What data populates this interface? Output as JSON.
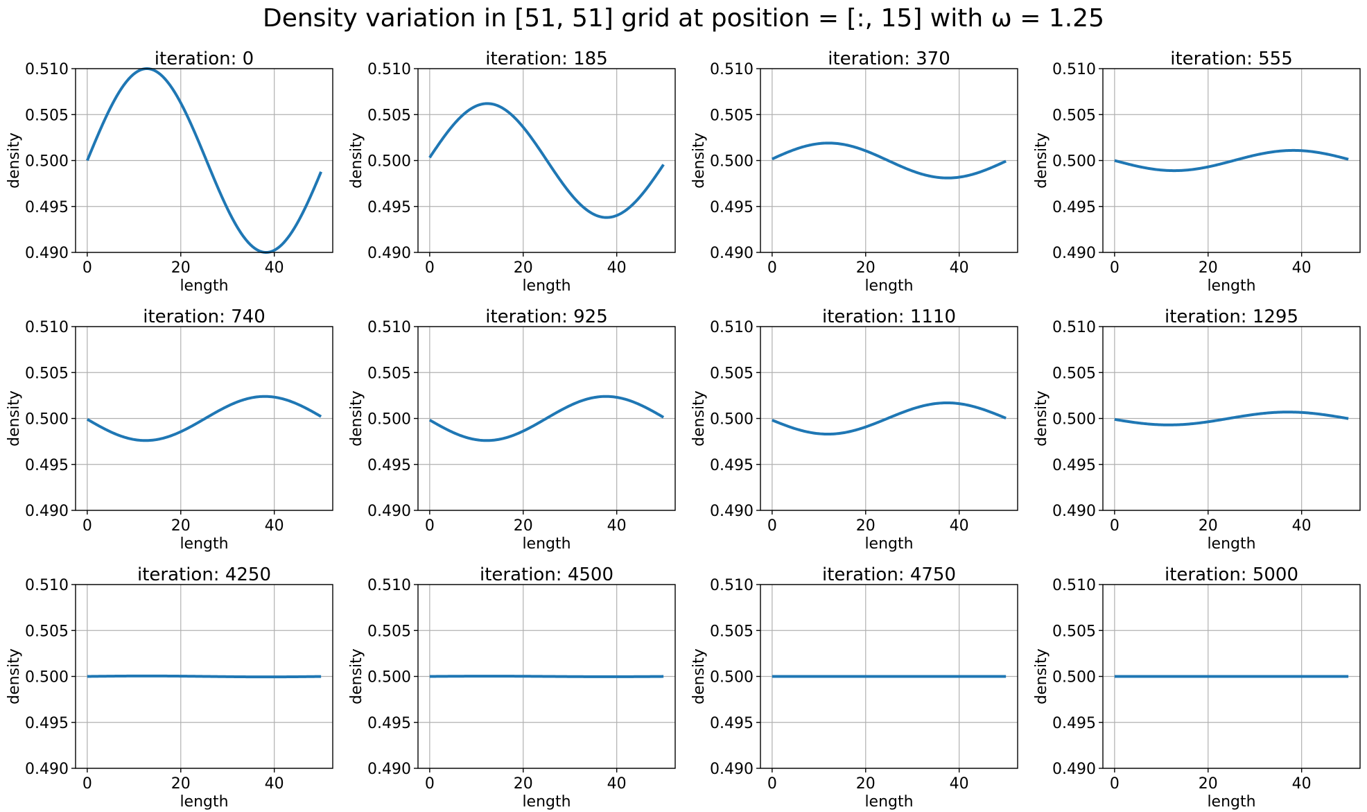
{
  "figure": {
    "title": "Density variation in [51, 51] grid at position = [:, 15] with ω = 1.25"
  },
  "chart_data": [
    {
      "type": "line",
      "title": "iteration: 0",
      "xlabel": "length",
      "ylabel": "density",
      "xlim": [
        -2.5,
        52.5
      ],
      "ylim": [
        0.49,
        0.51
      ],
      "xticks": [
        "0",
        "20",
        "40"
      ],
      "yticks": [
        "0.490",
        "0.495",
        "0.500",
        "0.505",
        "0.510"
      ],
      "grid": true,
      "color": "#1f77b4",
      "series": [
        {
          "x": [
            0,
            50
          ],
          "amplitude": 0.01,
          "phase_deg": 0,
          "wavelength": 51,
          "baseline": 0.5
        }
      ]
    },
    {
      "type": "line",
      "title": "iteration: 185",
      "xlabel": "length",
      "ylabel": "density",
      "xlim": [
        -2.5,
        52.5
      ],
      "ylim": [
        0.49,
        0.51
      ],
      "xticks": [
        "0",
        "20",
        "40"
      ],
      "yticks": [
        "0.490",
        "0.495",
        "0.500",
        "0.505",
        "0.510"
      ],
      "grid": true,
      "color": "#1f77b4",
      "series": [
        {
          "x": [
            0,
            50
          ],
          "amplitude": 0.0062,
          "phase_deg": 3,
          "wavelength": 51,
          "baseline": 0.5
        }
      ]
    },
    {
      "type": "line",
      "title": "iteration: 370",
      "xlabel": "length",
      "ylabel": "density",
      "xlim": [
        -2.5,
        52.5
      ],
      "ylim": [
        0.49,
        0.51
      ],
      "xticks": [
        "0",
        "20",
        "40"
      ],
      "yticks": [
        "0.490",
        "0.495",
        "0.500",
        "0.505",
        "0.510"
      ],
      "grid": true,
      "color": "#1f77b4",
      "series": [
        {
          "x": [
            0,
            50
          ],
          "amplitude": 0.0019,
          "phase_deg": 5,
          "wavelength": 51,
          "baseline": 0.5
        }
      ]
    },
    {
      "type": "line",
      "title": "iteration: 555",
      "xlabel": "length",
      "ylabel": "density",
      "xlim": [
        -2.5,
        52.5
      ],
      "ylim": [
        0.49,
        0.51
      ],
      "xticks": [
        "0",
        "20",
        "40"
      ],
      "yticks": [
        "0.490",
        "0.495",
        "0.500",
        "0.505",
        "0.510"
      ],
      "grid": true,
      "color": "#1f77b4",
      "series": [
        {
          "x": [
            0,
            50
          ],
          "amplitude": 0.0011,
          "phase_deg": 180,
          "wavelength": 51,
          "baseline": 0.5
        }
      ]
    },
    {
      "type": "line",
      "title": "iteration: 740",
      "xlabel": "length",
      "ylabel": "density",
      "xlim": [
        -2.5,
        52.5
      ],
      "ylim": [
        0.49,
        0.51
      ],
      "xticks": [
        "0",
        "20",
        "40"
      ],
      "yticks": [
        "0.490",
        "0.495",
        "0.500",
        "0.505",
        "0.510"
      ],
      "grid": true,
      "color": "#1f77b4",
      "series": [
        {
          "x": [
            0,
            50
          ],
          "amplitude": 0.0024,
          "phase_deg": 182,
          "wavelength": 51,
          "baseline": 0.5
        }
      ]
    },
    {
      "type": "line",
      "title": "iteration: 925",
      "xlabel": "length",
      "ylabel": "density",
      "xlim": [
        -2.5,
        52.5
      ],
      "ylim": [
        0.49,
        0.51
      ],
      "xticks": [
        "0",
        "20",
        "40"
      ],
      "yticks": [
        "0.490",
        "0.495",
        "0.500",
        "0.505",
        "0.510"
      ],
      "grid": true,
      "color": "#1f77b4",
      "series": [
        {
          "x": [
            0,
            50
          ],
          "amplitude": 0.0024,
          "phase_deg": 184,
          "wavelength": 51,
          "baseline": 0.5
        }
      ]
    },
    {
      "type": "line",
      "title": "iteration: 1110",
      "xlabel": "length",
      "ylabel": "density",
      "xlim": [
        -2.5,
        52.5
      ],
      "ylim": [
        0.49,
        0.51
      ],
      "xticks": [
        "0",
        "20",
        "40"
      ],
      "yticks": [
        "0.490",
        "0.495",
        "0.500",
        "0.505",
        "0.510"
      ],
      "grid": true,
      "color": "#1f77b4",
      "series": [
        {
          "x": [
            0,
            50
          ],
          "amplitude": 0.0017,
          "phase_deg": 186,
          "wavelength": 51,
          "baseline": 0.5
        }
      ]
    },
    {
      "type": "line",
      "title": "iteration: 1295",
      "xlabel": "length",
      "ylabel": "density",
      "xlim": [
        -2.5,
        52.5
      ],
      "ylim": [
        0.49,
        0.51
      ],
      "xticks": [
        "0",
        "20",
        "40"
      ],
      "yticks": [
        "0.490",
        "0.495",
        "0.500",
        "0.505",
        "0.510"
      ],
      "grid": true,
      "color": "#1f77b4",
      "series": [
        {
          "x": [
            0,
            50
          ],
          "amplitude": 0.0007,
          "phase_deg": 188,
          "wavelength": 51,
          "baseline": 0.5
        }
      ]
    },
    {
      "type": "line",
      "title": "iteration: 4250",
      "xlabel": "length",
      "ylabel": "density",
      "xlim": [
        -2.5,
        52.5
      ],
      "ylim": [
        0.49,
        0.51
      ],
      "xticks": [
        "0",
        "20",
        "40"
      ],
      "yticks": [
        "0.490",
        "0.495",
        "0.500",
        "0.505",
        "0.510"
      ],
      "grid": true,
      "color": "#1f77b4",
      "series": [
        {
          "x": [
            0,
            50
          ],
          "amplitude": 5e-05,
          "phase_deg": 0,
          "wavelength": 51,
          "baseline": 0.5
        }
      ]
    },
    {
      "type": "line",
      "title": "iteration: 4500",
      "xlabel": "length",
      "ylabel": "density",
      "xlim": [
        -2.5,
        52.5
      ],
      "ylim": [
        0.49,
        0.51
      ],
      "xticks": [
        "0",
        "20",
        "40"
      ],
      "yticks": [
        "0.490",
        "0.495",
        "0.500",
        "0.505",
        "0.510"
      ],
      "grid": true,
      "color": "#1f77b4",
      "series": [
        {
          "x": [
            0,
            50
          ],
          "amplitude": 3e-05,
          "phase_deg": 0,
          "wavelength": 51,
          "baseline": 0.5
        }
      ]
    },
    {
      "type": "line",
      "title": "iteration: 4750",
      "xlabel": "length",
      "ylabel": "density",
      "xlim": [
        -2.5,
        52.5
      ],
      "ylim": [
        0.49,
        0.51
      ],
      "xticks": [
        "0",
        "20",
        "40"
      ],
      "yticks": [
        "0.490",
        "0.495",
        "0.500",
        "0.505",
        "0.510"
      ],
      "grid": true,
      "color": "#1f77b4",
      "series": [
        {
          "x": [
            0,
            50
          ],
          "amplitude": 0.0,
          "phase_deg": 0,
          "wavelength": 51,
          "baseline": 0.5
        }
      ]
    },
    {
      "type": "line",
      "title": "iteration: 5000",
      "xlabel": "length",
      "ylabel": "density",
      "xlim": [
        -2.5,
        52.5
      ],
      "ylim": [
        0.49,
        0.51
      ],
      "xticks": [
        "0",
        "20",
        "40"
      ],
      "yticks": [
        "0.490",
        "0.495",
        "0.500",
        "0.505",
        "0.510"
      ],
      "grid": true,
      "color": "#1f77b4",
      "series": [
        {
          "x": [
            0,
            50
          ],
          "amplitude": 0.0,
          "phase_deg": 0,
          "wavelength": 51,
          "baseline": 0.5
        }
      ]
    }
  ]
}
